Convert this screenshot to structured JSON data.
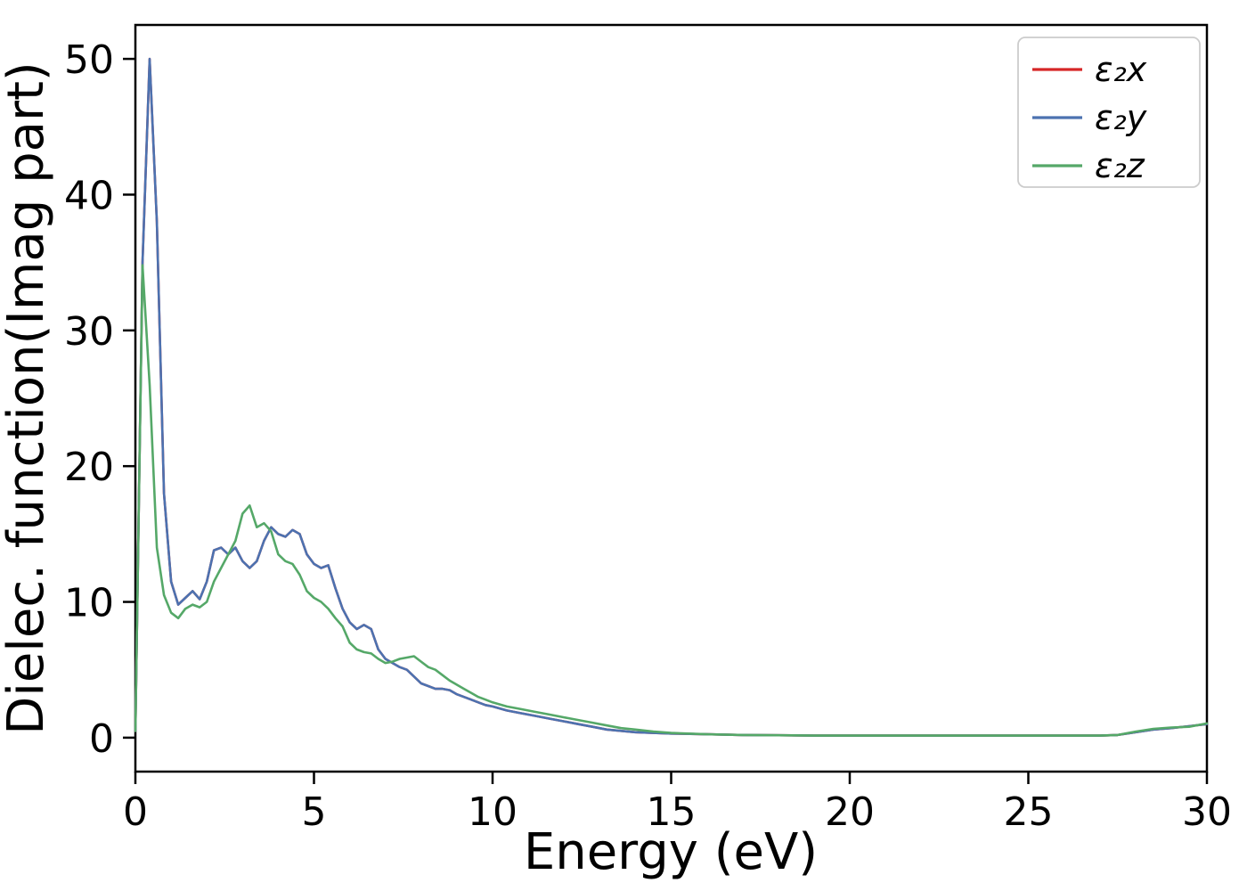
{
  "figure": {
    "background": "#ffffff",
    "spine_color": "#000000"
  },
  "chart_data": {
    "type": "line",
    "title": "",
    "xlabel": "Energy (eV)",
    "ylabel": "Dielec. function(Imag part)",
    "xlim": [
      0,
      30
    ],
    "ylim": [
      -2.5,
      52.5
    ],
    "x_ticks": [
      0,
      5,
      10,
      15,
      20,
      25,
      30
    ],
    "y_ticks": [
      0,
      10,
      20,
      30,
      40,
      50
    ],
    "grid": false,
    "legend_position": "upper right",
    "x": [
      0,
      0.2,
      0.4,
      0.6,
      0.8,
      1.0,
      1.2,
      1.4,
      1.6,
      1.8,
      2.0,
      2.2,
      2.4,
      2.6,
      2.8,
      3.0,
      3.2,
      3.4,
      3.6,
      3.8,
      4.0,
      4.2,
      4.4,
      4.6,
      4.8,
      5.0,
      5.2,
      5.4,
      5.6,
      5.8,
      6.0,
      6.2,
      6.4,
      6.6,
      6.8,
      7.0,
      7.2,
      7.4,
      7.6,
      7.8,
      8.0,
      8.2,
      8.4,
      8.6,
      8.8,
      9.0,
      9.2,
      9.4,
      9.6,
      9.8,
      10.0,
      10.4,
      10.8,
      11.2,
      11.6,
      12.0,
      12.4,
      12.8,
      13.2,
      13.6,
      14.0,
      14.5,
      15.0,
      16.0,
      17.0,
      18.0,
      19.0,
      20.0,
      21.0,
      22.0,
      23.0,
      24.0,
      25.0,
      26.0,
      27.0,
      27.5,
      28.0,
      28.5,
      29.0,
      29.5,
      30.0
    ],
    "series": [
      {
        "name": "ε₂x",
        "color": "#d62728",
        "values": [
          0.5,
          35,
          50,
          38,
          18,
          11.5,
          9.8,
          10.3,
          10.8,
          10.2,
          11.5,
          13.8,
          14.0,
          13.5,
          14.0,
          13.0,
          12.5,
          13.0,
          14.5,
          15.5,
          15.0,
          14.8,
          15.3,
          15.0,
          13.5,
          12.8,
          12.5,
          12.7,
          11.0,
          9.5,
          8.5,
          8.0,
          8.3,
          8.0,
          6.5,
          5.8,
          5.5,
          5.2,
          5.0,
          4.5,
          4.0,
          3.8,
          3.6,
          3.6,
          3.5,
          3.2,
          3.0,
          2.8,
          2.6,
          2.4,
          2.3,
          2.0,
          1.8,
          1.6,
          1.4,
          1.2,
          1.0,
          0.8,
          0.6,
          0.5,
          0.4,
          0.35,
          0.3,
          0.25,
          0.2,
          0.18,
          0.15,
          0.15,
          0.15,
          0.15,
          0.15,
          0.15,
          0.15,
          0.15,
          0.15,
          0.2,
          0.4,
          0.6,
          0.7,
          0.85,
          1.0
        ]
      },
      {
        "name": "ε₂y",
        "color": "#4c72b0",
        "values": [
          0.5,
          35,
          50,
          38,
          18,
          11.5,
          9.8,
          10.3,
          10.8,
          10.2,
          11.5,
          13.8,
          14.0,
          13.5,
          14.0,
          13.0,
          12.5,
          13.0,
          14.5,
          15.5,
          15.0,
          14.8,
          15.3,
          15.0,
          13.5,
          12.8,
          12.5,
          12.7,
          11.0,
          9.5,
          8.5,
          8.0,
          8.3,
          8.0,
          6.5,
          5.8,
          5.5,
          5.2,
          5.0,
          4.5,
          4.0,
          3.8,
          3.6,
          3.6,
          3.5,
          3.2,
          3.0,
          2.8,
          2.6,
          2.4,
          2.3,
          2.0,
          1.8,
          1.6,
          1.4,
          1.2,
          1.0,
          0.8,
          0.6,
          0.5,
          0.4,
          0.35,
          0.3,
          0.25,
          0.2,
          0.18,
          0.15,
          0.15,
          0.15,
          0.15,
          0.15,
          0.15,
          0.15,
          0.15,
          0.15,
          0.2,
          0.4,
          0.6,
          0.7,
          0.85,
          1.0
        ]
      },
      {
        "name": "ε₂z",
        "color": "#55a868",
        "values": [
          0.5,
          34.8,
          26,
          14,
          10.5,
          9.2,
          8.8,
          9.5,
          9.8,
          9.6,
          10.0,
          11.5,
          12.5,
          13.5,
          14.5,
          16.5,
          17.1,
          15.5,
          15.8,
          15.2,
          13.5,
          13.0,
          12.8,
          12.0,
          10.8,
          10.3,
          10.0,
          9.5,
          8.8,
          8.2,
          7.0,
          6.5,
          6.3,
          6.2,
          5.8,
          5.5,
          5.6,
          5.8,
          5.9,
          6.0,
          5.6,
          5.2,
          5.0,
          4.6,
          4.2,
          3.9,
          3.6,
          3.3,
          3.0,
          2.8,
          2.6,
          2.3,
          2.1,
          1.9,
          1.7,
          1.5,
          1.3,
          1.1,
          0.9,
          0.7,
          0.6,
          0.45,
          0.35,
          0.25,
          0.2,
          0.18,
          0.15,
          0.15,
          0.15,
          0.15,
          0.15,
          0.15,
          0.15,
          0.15,
          0.15,
          0.2,
          0.45,
          0.65,
          0.75,
          0.8,
          1.05
        ]
      }
    ]
  }
}
